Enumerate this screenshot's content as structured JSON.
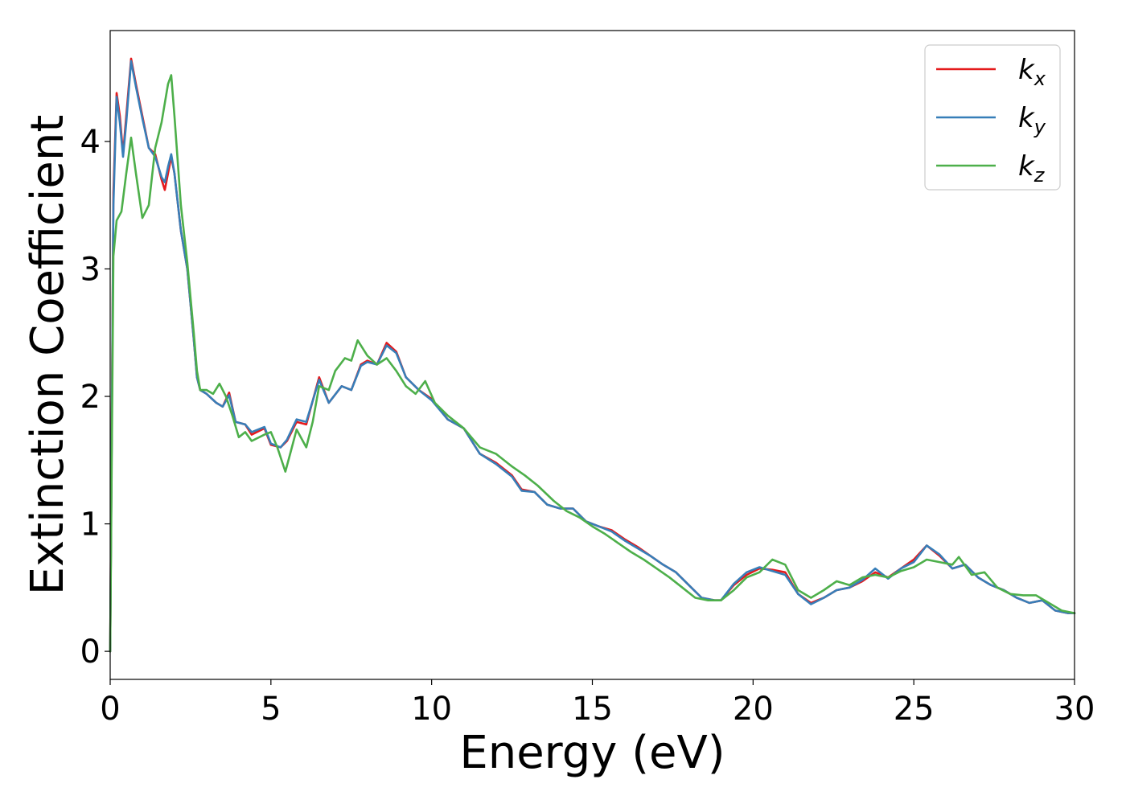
{
  "chart_data": {
    "type": "line",
    "xlabel": "Energy (eV)",
    "ylabel": "Extinction Coefficient",
    "xlim": [
      0,
      30
    ],
    "ylim": [
      -0.22,
      4.87
    ],
    "xticks": [
      0,
      5,
      10,
      15,
      20,
      25,
      30
    ],
    "yticks": [
      0,
      1,
      2,
      3,
      4
    ],
    "grid": false,
    "legend_position": "top-right",
    "series": [
      {
        "name": "k_x",
        "label_base": "k",
        "label_sub": "x",
        "color": "#e41a1c",
        "points": [
          [
            0.0,
            0.0
          ],
          [
            0.1,
            3.6
          ],
          [
            0.2,
            4.38
          ],
          [
            0.3,
            4.2
          ],
          [
            0.4,
            3.9
          ],
          [
            0.5,
            4.2
          ],
          [
            0.65,
            4.65
          ],
          [
            0.8,
            4.45
          ],
          [
            1.0,
            4.2
          ],
          [
            1.2,
            3.95
          ],
          [
            1.4,
            3.9
          ],
          [
            1.6,
            3.7
          ],
          [
            1.7,
            3.62
          ],
          [
            1.8,
            3.75
          ],
          [
            1.9,
            3.88
          ],
          [
            2.0,
            3.75
          ],
          [
            2.2,
            3.3
          ],
          [
            2.4,
            3.0
          ],
          [
            2.6,
            2.45
          ],
          [
            2.7,
            2.15
          ],
          [
            2.8,
            2.05
          ],
          [
            3.0,
            2.02
          ],
          [
            3.3,
            1.95
          ],
          [
            3.5,
            1.92
          ],
          [
            3.7,
            2.03
          ],
          [
            3.9,
            1.8
          ],
          [
            4.2,
            1.78
          ],
          [
            4.4,
            1.7
          ],
          [
            4.8,
            1.75
          ],
          [
            5.0,
            1.62
          ],
          [
            5.3,
            1.6
          ],
          [
            5.5,
            1.65
          ],
          [
            5.8,
            1.8
          ],
          [
            6.1,
            1.78
          ],
          [
            6.5,
            2.15
          ],
          [
            6.8,
            1.95
          ],
          [
            7.2,
            2.08
          ],
          [
            7.5,
            2.05
          ],
          [
            7.8,
            2.25
          ],
          [
            8.0,
            2.28
          ],
          [
            8.3,
            2.25
          ],
          [
            8.6,
            2.42
          ],
          [
            8.9,
            2.35
          ],
          [
            9.2,
            2.15
          ],
          [
            9.6,
            2.05
          ],
          [
            10.0,
            1.98
          ],
          [
            10.5,
            1.82
          ],
          [
            11.0,
            1.75
          ],
          [
            11.5,
            1.55
          ],
          [
            12.0,
            1.48
          ],
          [
            12.5,
            1.38
          ],
          [
            12.8,
            1.27
          ],
          [
            13.2,
            1.25
          ],
          [
            13.6,
            1.15
          ],
          [
            14.0,
            1.12
          ],
          [
            14.4,
            1.12
          ],
          [
            14.8,
            1.02
          ],
          [
            15.2,
            0.98
          ],
          [
            15.6,
            0.95
          ],
          [
            16.0,
            0.88
          ],
          [
            16.4,
            0.82
          ],
          [
            16.8,
            0.75
          ],
          [
            17.2,
            0.68
          ],
          [
            17.6,
            0.62
          ],
          [
            18.0,
            0.52
          ],
          [
            18.4,
            0.42
          ],
          [
            18.8,
            0.4
          ],
          [
            19.0,
            0.4
          ],
          [
            19.4,
            0.52
          ],
          [
            19.8,
            0.6
          ],
          [
            20.2,
            0.65
          ],
          [
            20.6,
            0.64
          ],
          [
            21.0,
            0.62
          ],
          [
            21.4,
            0.45
          ],
          [
            21.8,
            0.38
          ],
          [
            22.2,
            0.42
          ],
          [
            22.6,
            0.48
          ],
          [
            23.0,
            0.5
          ],
          [
            23.4,
            0.55
          ],
          [
            23.8,
            0.62
          ],
          [
            24.2,
            0.58
          ],
          [
            24.6,
            0.65
          ],
          [
            25.0,
            0.72
          ],
          [
            25.4,
            0.83
          ],
          [
            25.8,
            0.75
          ],
          [
            26.2,
            0.65
          ],
          [
            26.6,
            0.68
          ],
          [
            27.0,
            0.58
          ],
          [
            27.4,
            0.52
          ],
          [
            27.8,
            0.48
          ],
          [
            28.2,
            0.42
          ],
          [
            28.6,
            0.38
          ],
          [
            29.0,
            0.4
          ],
          [
            29.4,
            0.32
          ],
          [
            29.8,
            0.3
          ],
          [
            30.0,
            0.3
          ]
        ]
      },
      {
        "name": "k_y",
        "label_base": "k",
        "label_sub": "y",
        "color": "#377eb8",
        "points": [
          [
            0.0,
            0.0
          ],
          [
            0.1,
            3.5
          ],
          [
            0.2,
            4.35
          ],
          [
            0.3,
            4.15
          ],
          [
            0.4,
            3.88
          ],
          [
            0.5,
            4.15
          ],
          [
            0.65,
            4.63
          ],
          [
            0.8,
            4.43
          ],
          [
            1.0,
            4.18
          ],
          [
            1.2,
            3.95
          ],
          [
            1.4,
            3.88
          ],
          [
            1.6,
            3.72
          ],
          [
            1.7,
            3.68
          ],
          [
            1.8,
            3.8
          ],
          [
            1.9,
            3.9
          ],
          [
            2.0,
            3.75
          ],
          [
            2.2,
            3.3
          ],
          [
            2.4,
            3.0
          ],
          [
            2.6,
            2.45
          ],
          [
            2.7,
            2.15
          ],
          [
            2.8,
            2.05
          ],
          [
            3.0,
            2.02
          ],
          [
            3.3,
            1.95
          ],
          [
            3.5,
            1.92
          ],
          [
            3.7,
            2.01
          ],
          [
            3.9,
            1.8
          ],
          [
            4.2,
            1.78
          ],
          [
            4.4,
            1.72
          ],
          [
            4.8,
            1.76
          ],
          [
            5.0,
            1.63
          ],
          [
            5.3,
            1.6
          ],
          [
            5.5,
            1.66
          ],
          [
            5.8,
            1.82
          ],
          [
            6.1,
            1.8
          ],
          [
            6.5,
            2.13
          ],
          [
            6.8,
            1.95
          ],
          [
            7.2,
            2.08
          ],
          [
            7.5,
            2.05
          ],
          [
            7.8,
            2.24
          ],
          [
            8.0,
            2.27
          ],
          [
            8.3,
            2.25
          ],
          [
            8.6,
            2.4
          ],
          [
            8.9,
            2.34
          ],
          [
            9.2,
            2.15
          ],
          [
            9.6,
            2.05
          ],
          [
            10.0,
            1.97
          ],
          [
            10.5,
            1.82
          ],
          [
            11.0,
            1.75
          ],
          [
            11.5,
            1.55
          ],
          [
            12.0,
            1.47
          ],
          [
            12.5,
            1.37
          ],
          [
            12.8,
            1.26
          ],
          [
            13.2,
            1.25
          ],
          [
            13.6,
            1.15
          ],
          [
            14.0,
            1.12
          ],
          [
            14.4,
            1.12
          ],
          [
            14.8,
            1.02
          ],
          [
            15.2,
            0.98
          ],
          [
            15.6,
            0.94
          ],
          [
            16.0,
            0.87
          ],
          [
            16.4,
            0.81
          ],
          [
            16.8,
            0.75
          ],
          [
            17.2,
            0.68
          ],
          [
            17.6,
            0.62
          ],
          [
            18.0,
            0.52
          ],
          [
            18.4,
            0.42
          ],
          [
            18.8,
            0.4
          ],
          [
            19.0,
            0.4
          ],
          [
            19.4,
            0.53
          ],
          [
            19.8,
            0.62
          ],
          [
            20.2,
            0.66
          ],
          [
            20.6,
            0.63
          ],
          [
            21.0,
            0.6
          ],
          [
            21.4,
            0.45
          ],
          [
            21.8,
            0.37
          ],
          [
            22.2,
            0.42
          ],
          [
            22.6,
            0.48
          ],
          [
            23.0,
            0.5
          ],
          [
            23.4,
            0.56
          ],
          [
            23.8,
            0.65
          ],
          [
            24.2,
            0.57
          ],
          [
            24.6,
            0.65
          ],
          [
            25.0,
            0.7
          ],
          [
            25.4,
            0.83
          ],
          [
            25.8,
            0.76
          ],
          [
            26.2,
            0.65
          ],
          [
            26.6,
            0.68
          ],
          [
            27.0,
            0.58
          ],
          [
            27.4,
            0.52
          ],
          [
            27.8,
            0.48
          ],
          [
            28.2,
            0.42
          ],
          [
            28.6,
            0.38
          ],
          [
            29.0,
            0.4
          ],
          [
            29.4,
            0.32
          ],
          [
            29.8,
            0.3
          ],
          [
            30.0,
            0.3
          ]
        ]
      },
      {
        "name": "k_z",
        "label_base": "k",
        "label_sub": "z",
        "color": "#4daf4a",
        "points": [
          [
            0.0,
            0.0
          ],
          [
            0.1,
            3.1
          ],
          [
            0.2,
            3.38
          ],
          [
            0.35,
            3.45
          ],
          [
            0.5,
            3.75
          ],
          [
            0.65,
            4.03
          ],
          [
            0.8,
            3.75
          ],
          [
            1.0,
            3.4
          ],
          [
            1.2,
            3.5
          ],
          [
            1.4,
            3.95
          ],
          [
            1.6,
            4.15
          ],
          [
            1.8,
            4.45
          ],
          [
            1.9,
            4.52
          ],
          [
            2.0,
            4.2
          ],
          [
            2.2,
            3.5
          ],
          [
            2.4,
            3.05
          ],
          [
            2.6,
            2.5
          ],
          [
            2.7,
            2.2
          ],
          [
            2.8,
            2.05
          ],
          [
            3.0,
            2.05
          ],
          [
            3.2,
            2.02
          ],
          [
            3.4,
            2.1
          ],
          [
            3.6,
            2.0
          ],
          [
            3.8,
            1.85
          ],
          [
            4.0,
            1.68
          ],
          [
            4.2,
            1.72
          ],
          [
            4.4,
            1.65
          ],
          [
            4.8,
            1.7
          ],
          [
            5.0,
            1.72
          ],
          [
            5.2,
            1.6
          ],
          [
            5.45,
            1.41
          ],
          [
            5.6,
            1.55
          ],
          [
            5.8,
            1.74
          ],
          [
            6.1,
            1.6
          ],
          [
            6.3,
            1.8
          ],
          [
            6.5,
            2.08
          ],
          [
            6.8,
            2.05
          ],
          [
            7.0,
            2.2
          ],
          [
            7.3,
            2.3
          ],
          [
            7.5,
            2.28
          ],
          [
            7.7,
            2.44
          ],
          [
            8.0,
            2.32
          ],
          [
            8.3,
            2.25
          ],
          [
            8.6,
            2.3
          ],
          [
            8.9,
            2.2
          ],
          [
            9.2,
            2.08
          ],
          [
            9.5,
            2.02
          ],
          [
            9.8,
            2.12
          ],
          [
            10.1,
            1.95
          ],
          [
            10.5,
            1.85
          ],
          [
            11.0,
            1.75
          ],
          [
            11.5,
            1.6
          ],
          [
            12.0,
            1.55
          ],
          [
            12.5,
            1.45
          ],
          [
            12.9,
            1.38
          ],
          [
            13.3,
            1.3
          ],
          [
            13.8,
            1.18
          ],
          [
            14.2,
            1.1
          ],
          [
            14.6,
            1.05
          ],
          [
            15.0,
            0.98
          ],
          [
            15.4,
            0.92
          ],
          [
            15.8,
            0.85
          ],
          [
            16.2,
            0.78
          ],
          [
            16.6,
            0.72
          ],
          [
            17.0,
            0.65
          ],
          [
            17.4,
            0.58
          ],
          [
            17.8,
            0.5
          ],
          [
            18.2,
            0.42
          ],
          [
            18.6,
            0.4
          ],
          [
            19.0,
            0.4
          ],
          [
            19.4,
            0.48
          ],
          [
            19.8,
            0.58
          ],
          [
            20.2,
            0.62
          ],
          [
            20.6,
            0.72
          ],
          [
            21.0,
            0.68
          ],
          [
            21.4,
            0.48
          ],
          [
            21.8,
            0.42
          ],
          [
            22.2,
            0.48
          ],
          [
            22.6,
            0.55
          ],
          [
            23.0,
            0.52
          ],
          [
            23.4,
            0.58
          ],
          [
            23.8,
            0.6
          ],
          [
            24.2,
            0.58
          ],
          [
            24.6,
            0.63
          ],
          [
            25.0,
            0.66
          ],
          [
            25.4,
            0.72
          ],
          [
            25.8,
            0.7
          ],
          [
            26.2,
            0.68
          ],
          [
            26.4,
            0.74
          ],
          [
            26.8,
            0.6
          ],
          [
            27.2,
            0.62
          ],
          [
            27.6,
            0.5
          ],
          [
            28.0,
            0.45
          ],
          [
            28.4,
            0.44
          ],
          [
            28.8,
            0.44
          ],
          [
            29.2,
            0.38
          ],
          [
            29.6,
            0.32
          ],
          [
            30.0,
            0.3
          ]
        ]
      }
    ]
  }
}
